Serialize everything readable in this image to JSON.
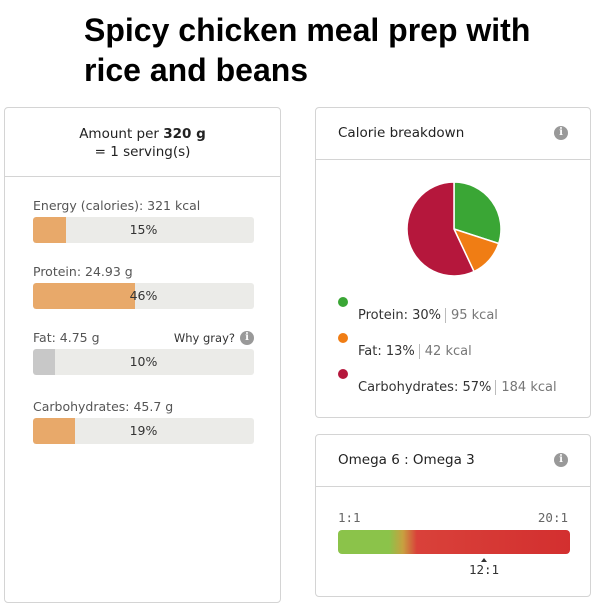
{
  "title": "Spicy chicken meal prep with rice and beans",
  "amount": {
    "prefix": "Amount per",
    "weight": "320 g",
    "serving": "= 1 serving(s)"
  },
  "nutrients": [
    {
      "label": "Energy (calories): 321 kcal",
      "percent": 15,
      "percent_label": "15%",
      "color": "#e8a96a"
    },
    {
      "label": "Protein: 24.93 g",
      "percent": 46,
      "percent_label": "46%",
      "color": "#e8a96a"
    },
    {
      "label": "Fat: 4.75 g",
      "percent": 10,
      "percent_label": "10%",
      "color": "#c8c8c8",
      "why_label": "Why gray?"
    },
    {
      "label": "Carbohydrates: 45.7 g",
      "percent": 19,
      "percent_label": "19%",
      "color": "#e8a96a"
    }
  ],
  "calorie_breakdown": {
    "title": "Calorie breakdown",
    "items": [
      {
        "name": "Protein: 30%",
        "kcal": "95 kcal",
        "percent": 30,
        "color": "#3aa635"
      },
      {
        "name": "Fat: 13%",
        "kcal": "42 kcal",
        "percent": 13,
        "color": "#f07d14"
      },
      {
        "name": "Carbohydrates: 57%",
        "kcal": "184 kcal",
        "percent": 57,
        "color": "#b5173c"
      }
    ]
  },
  "omega": {
    "title": "Omega 6 : Omega 3",
    "min_label": "1:1",
    "max_label": "20:1",
    "current_label": "12:1",
    "current_value": 12,
    "colors": {
      "good": "#8bc34a",
      "bad": "#d32f2f"
    }
  },
  "icons": {
    "info": "info-icon"
  }
}
